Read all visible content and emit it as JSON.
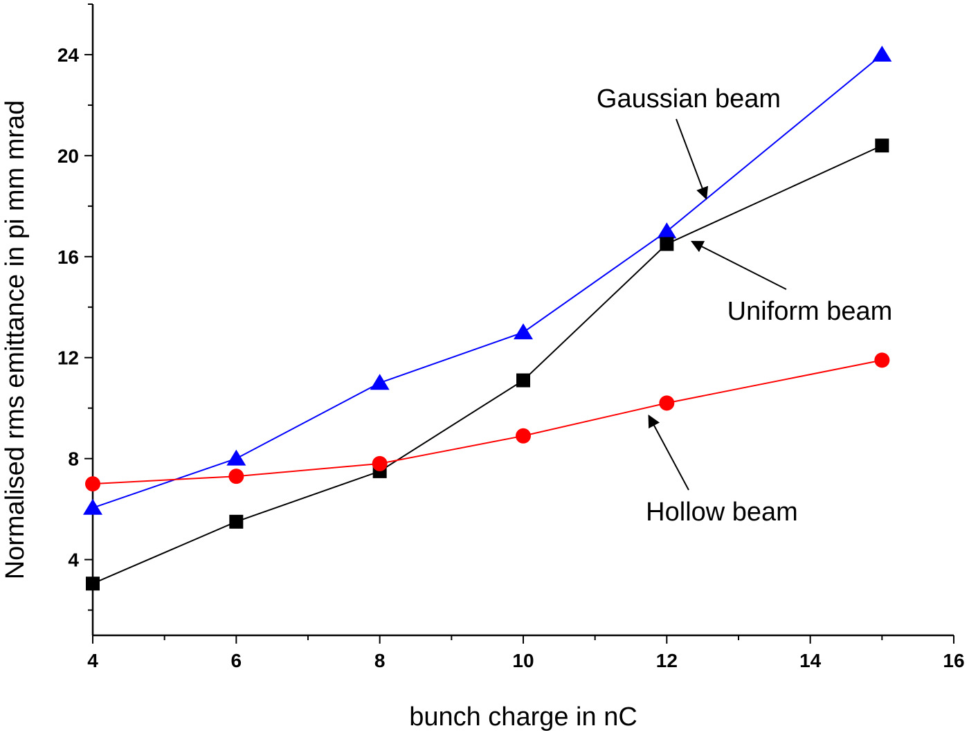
{
  "chart_data": {
    "type": "line",
    "xlabel": "bunch charge in nC",
    "ylabel": "Normalised rms emittance in pi mm mrad",
    "xlim": [
      4,
      16
    ],
    "ylim": [
      1,
      26
    ],
    "x_ticks": [
      4,
      6,
      8,
      10,
      12,
      14,
      16
    ],
    "y_ticks": [
      4,
      8,
      12,
      16,
      20,
      24
    ],
    "grid": false,
    "legend": "none",
    "series": [
      {
        "key": "gaussian",
        "color": "#0000ff",
        "marker": "triangle",
        "x": [
          4,
          6,
          8,
          10,
          12,
          15
        ],
        "y": [
          6.05,
          8.0,
          11.0,
          13.0,
          17.0,
          24.0
        ]
      },
      {
        "key": "uniform",
        "color": "#000000",
        "marker": "square",
        "x": [
          4,
          6,
          8,
          10,
          12,
          15
        ],
        "y": [
          3.05,
          5.5,
          7.5,
          11.1,
          16.5,
          20.4
        ]
      },
      {
        "key": "hollow",
        "color": "#ff0000",
        "marker": "circle",
        "x": [
          4,
          6,
          8,
          10,
          12,
          15
        ],
        "y": [
          7.0,
          7.3,
          7.8,
          8.9,
          10.2,
          11.9
        ]
      }
    ],
    "annotations": [
      {
        "key": "gaussian",
        "text": "Gaussian beam",
        "arrow_to": [
          12.55,
          18.3
        ]
      },
      {
        "key": "uniform",
        "text": "Uniform beam",
        "arrow_to": [
          12.35,
          16.6
        ]
      },
      {
        "key": "hollow",
        "text": "Hollow beam",
        "arrow_to": [
          11.75,
          9.7
        ]
      }
    ]
  }
}
